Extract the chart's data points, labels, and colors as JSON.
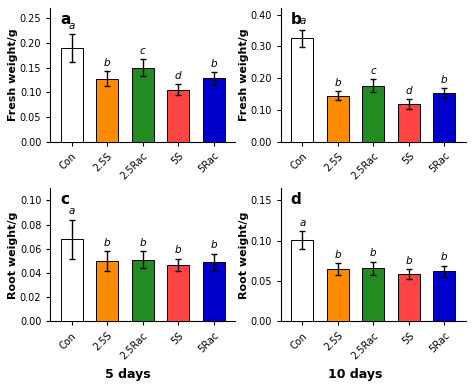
{
  "panels": [
    {
      "label": "a",
      "ylabel": "Fresh weight/g",
      "xlabel": "",
      "ylim": [
        0,
        0.27
      ],
      "yticks": [
        0.0,
        0.05,
        0.1,
        0.15,
        0.2,
        0.25
      ],
      "values": [
        0.19,
        0.127,
        0.15,
        0.105,
        0.128
      ],
      "errors": [
        0.028,
        0.015,
        0.017,
        0.011,
        0.013
      ],
      "sig_labels": [
        "a",
        "b",
        "c",
        "d",
        "b"
      ],
      "categories": [
        "Con",
        "2.5S",
        "2.5Rac",
        "5S",
        "5Rac"
      ],
      "colors": [
        "#ffffff",
        "#ff8c00",
        "#228b22",
        "#ff4444",
        "#0000cc"
      ]
    },
    {
      "label": "b",
      "ylabel": "Fresh weight/g",
      "xlabel": "",
      "ylim": [
        0,
        0.42
      ],
      "yticks": [
        0.0,
        0.1,
        0.2,
        0.3,
        0.4
      ],
      "values": [
        0.325,
        0.145,
        0.176,
        0.118,
        0.153
      ],
      "errors": [
        0.028,
        0.014,
        0.02,
        0.016,
        0.015
      ],
      "sig_labels": [
        "a",
        "b",
        "c",
        "d",
        "b"
      ],
      "categories": [
        "Con",
        "2.5S",
        "2.5Rac",
        "5S",
        "5Rac"
      ],
      "colors": [
        "#ffffff",
        "#ff8c00",
        "#228b22",
        "#ff4444",
        "#0000cc"
      ]
    },
    {
      "label": "c",
      "ylabel": "Root weight/g",
      "xlabel": "5 days",
      "ylim": [
        0,
        0.11
      ],
      "yticks": [
        0.0,
        0.02,
        0.04,
        0.06,
        0.08,
        0.1
      ],
      "values": [
        0.068,
        0.05,
        0.051,
        0.047,
        0.049
      ],
      "errors": [
        0.016,
        0.008,
        0.007,
        0.005,
        0.007
      ],
      "sig_labels": [
        "a",
        "b",
        "b",
        "b",
        "b"
      ],
      "categories": [
        "Con",
        "2.5S",
        "2.5Rac",
        "5S",
        "5Rac"
      ],
      "colors": [
        "#ffffff",
        "#ff8c00",
        "#228b22",
        "#ff4444",
        "#0000cc"
      ]
    },
    {
      "label": "d",
      "ylabel": "Root weight/g",
      "xlabel": "10 days",
      "ylim": [
        0,
        0.165
      ],
      "yticks": [
        0.0,
        0.05,
        0.1,
        0.15
      ],
      "values": [
        0.101,
        0.065,
        0.066,
        0.059,
        0.062
      ],
      "errors": [
        0.011,
        0.007,
        0.008,
        0.006,
        0.007
      ],
      "sig_labels": [
        "a",
        "b",
        "b",
        "b",
        "b"
      ],
      "categories": [
        "Con",
        "2.5S",
        "2.5Rac",
        "5S",
        "5Rac"
      ],
      "colors": [
        "#ffffff",
        "#ff8c00",
        "#228b22",
        "#ff4444",
        "#0000cc"
      ]
    }
  ],
  "bar_edgecolor": "#000000",
  "bar_width": 0.62,
  "error_capsize": 2.5,
  "error_linewidth": 1.0,
  "tick_fontsize": 7,
  "label_fontsize": 8,
  "sig_fontsize": 7.5,
  "panel_label_fontsize": 11,
  "xlabel_fontsize": 9,
  "background_color": "#ffffff"
}
